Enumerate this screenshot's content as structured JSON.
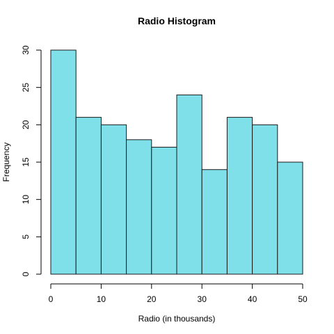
{
  "chart_data": {
    "type": "bar",
    "title": "Radio Histogram",
    "xlabel": "Radio (in thousands)",
    "ylabel": "Frequency",
    "bins": [
      {
        "start": 0,
        "end": 5,
        "count": 30
      },
      {
        "start": 5,
        "end": 10,
        "count": 21
      },
      {
        "start": 10,
        "end": 15,
        "count": 20
      },
      {
        "start": 15,
        "end": 20,
        "count": 18
      },
      {
        "start": 20,
        "end": 25,
        "count": 17
      },
      {
        "start": 25,
        "end": 30,
        "count": 24
      },
      {
        "start": 30,
        "end": 35,
        "count": 14
      },
      {
        "start": 35,
        "end": 40,
        "count": 21
      },
      {
        "start": 40,
        "end": 45,
        "count": 20
      },
      {
        "start": 45,
        "end": 50,
        "count": 15
      }
    ],
    "xlim": [
      0,
      50
    ],
    "ylim": [
      0,
      30
    ],
    "x_ticks": [
      "0",
      "10",
      "20",
      "30",
      "40",
      "50"
    ],
    "y_ticks": [
      "0",
      "5",
      "10",
      "15",
      "20",
      "25",
      "30"
    ],
    "grid": false,
    "bar_color": "#7FE0EA",
    "bar_edge_color": "#1a1a1a"
  }
}
